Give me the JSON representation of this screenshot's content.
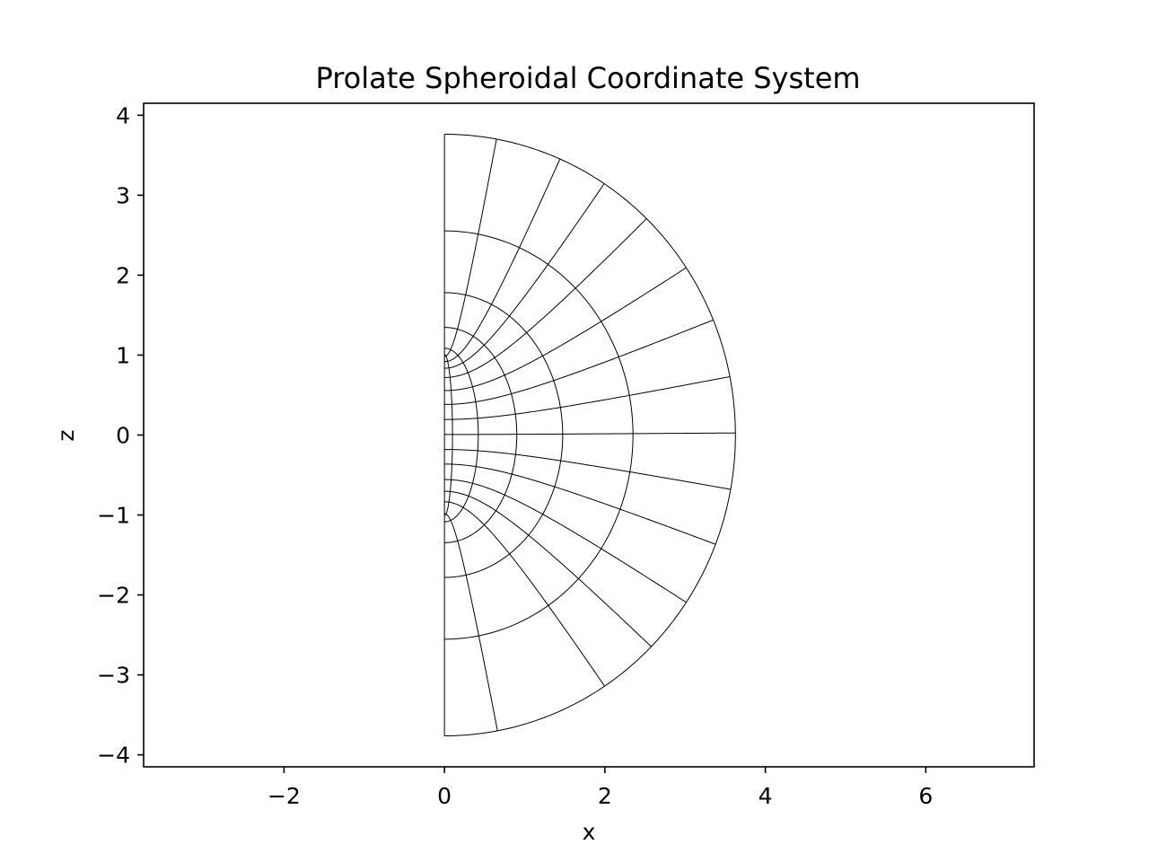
{
  "chart_data": {
    "type": "line",
    "title": "Prolate Spheroidal Coordinate System",
    "xlabel": "x",
    "ylabel": "z",
    "xlim": [
      -3.75,
      7.35
    ],
    "ylim": [
      -4.15,
      4.15
    ],
    "xticks": [
      -2,
      0,
      2,
      4,
      6
    ],
    "yticks": [
      -4,
      -3,
      -2,
      -1,
      0,
      1,
      2,
      3,
      4
    ],
    "grid": false,
    "legend": "none",
    "line_color": "#000000",
    "focal_distance_a": 1.0,
    "series": [
      {
        "family": "mu-constant (ellipses)",
        "values": [
          0.1,
          0.41,
          0.81,
          1.18,
          1.59,
          2.0
        ]
      },
      {
        "family": "nu-constant (hyperbolas)",
        "values_deg": [
          10.3,
          23.4,
          33.3,
          44.0,
          56.2,
          67.5,
          78.8,
          89.6,
          100.4,
          111.3,
          123.8,
          134.7,
          146.6,
          169.5
        ]
      }
    ]
  }
}
